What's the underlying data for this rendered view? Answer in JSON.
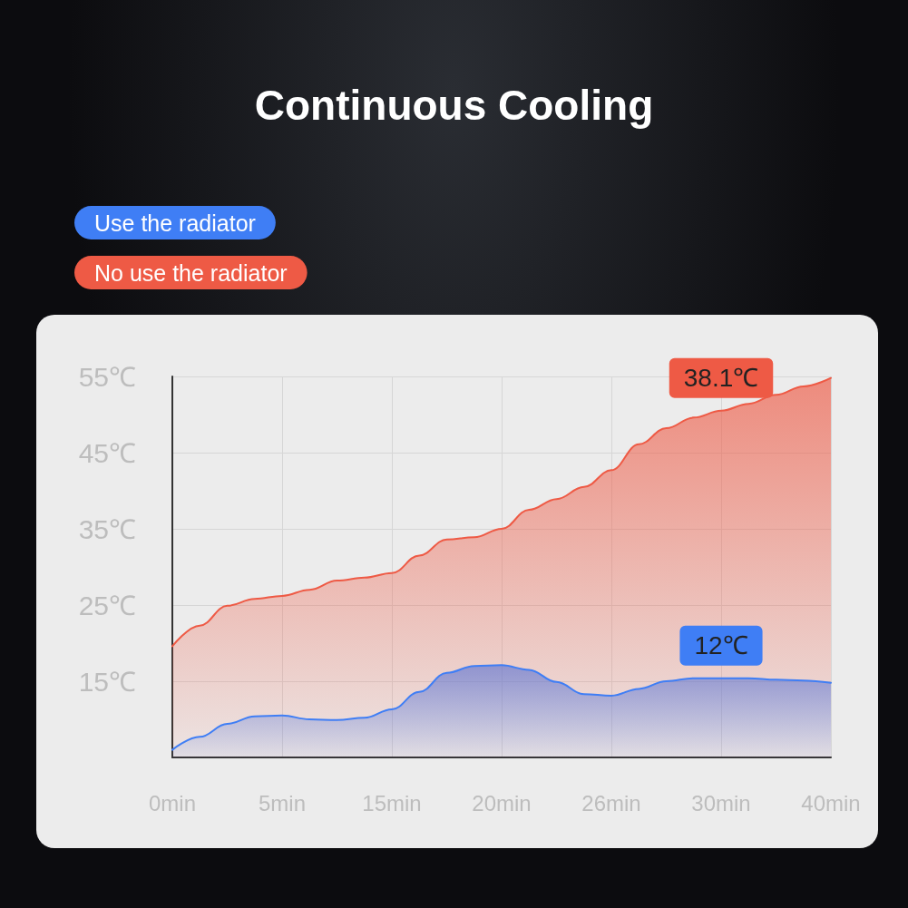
{
  "chart_data": {
    "type": "area",
    "title": "Continuous Cooling",
    "categories": [
      "0min",
      null,
      null,
      null,
      "5min",
      null,
      null,
      null,
      "15min",
      null,
      null,
      null,
      "20min",
      null,
      null,
      null,
      "26min",
      null,
      null,
      null,
      "30min",
      null,
      null,
      null,
      "40min"
    ],
    "series": [
      {
        "name": "Use the radiator",
        "color": "#3f7ef5",
        "values": [
          6.0,
          7.7,
          9.4,
          10.4,
          10.5,
          10.0,
          9.9,
          10.2,
          11.3,
          13.6,
          16.1,
          17.0,
          17.1,
          16.5,
          14.9,
          13.3,
          13.1,
          14.0,
          15.0,
          15.4,
          15.4,
          15.4,
          15.2,
          15.1,
          14.8
        ]
      },
      {
        "name": "No use the radiator",
        "color": "#ee5a45",
        "values": [
          19.6,
          22.3,
          24.9,
          25.8,
          26.2,
          27.0,
          28.2,
          28.6,
          29.2,
          31.5,
          33.6,
          33.9,
          35.0,
          37.5,
          38.9,
          40.5,
          42.7,
          46.1,
          48.2,
          49.6,
          50.5,
          51.4,
          52.6,
          53.7,
          54.8
        ]
      }
    ],
    "ylim": [
      5,
      55
    ],
    "yticks": [
      {
        "value": 15,
        "label": "15℃"
      },
      {
        "value": 25,
        "label": "25℃"
      },
      {
        "value": 35,
        "label": "35℃"
      },
      {
        "value": 45,
        "label": "45℃"
      },
      {
        "value": 55,
        "label": "55℃"
      }
    ],
    "annotations": [
      {
        "text": "38.1℃",
        "x": "30min",
        "y": 50.5
      },
      {
        "text": "12℃",
        "x": "30min",
        "y": 15.4
      }
    ],
    "grid": true,
    "legend": "top left",
    "marker": "none"
  }
}
